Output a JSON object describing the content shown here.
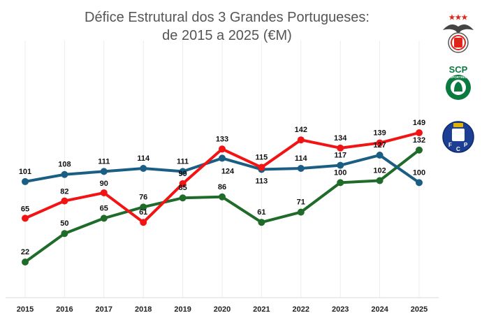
{
  "chart_data": {
    "type": "line",
    "title": [
      "Défice Estrutural dos 3 Grandes Portugueses:",
      "de 2015 a 2025 (€M)"
    ],
    "xlabel": "",
    "ylabel": "",
    "grid": "vertical",
    "legend": "logos-right",
    "categories": [
      "2015",
      "2016",
      "2017",
      "2018",
      "2019",
      "2020",
      "2021",
      "2022",
      "2023",
      "2024",
      "2025"
    ],
    "series": [
      {
        "color": "#F21414",
        "values": [
          65,
          82,
          90,
          61,
          99,
          133,
          115,
          142,
          134,
          139,
          149
        ]
      },
      {
        "color": "#1B5E84",
        "values": [
          101,
          108,
          111,
          114,
          111,
          124,
          113,
          114,
          117,
          127,
          100
        ]
      },
      {
        "color": "#1F6B2A",
        "values": [
          22,
          50,
          65,
          76,
          85,
          86,
          61,
          71,
          100,
          102,
          132
        ]
      }
    ]
  },
  "logos": [
    {
      "name": "benfica-crest",
      "stars": "★★★",
      "color": "#E2231A"
    },
    {
      "name": "sporting-crest",
      "text": "SCP",
      "ring": "SPORTING",
      "color": "#0B7A3E"
    },
    {
      "name": "porto-crest",
      "letters": [
        "F",
        "C",
        "P"
      ],
      "color": "#1C3F94"
    }
  ]
}
